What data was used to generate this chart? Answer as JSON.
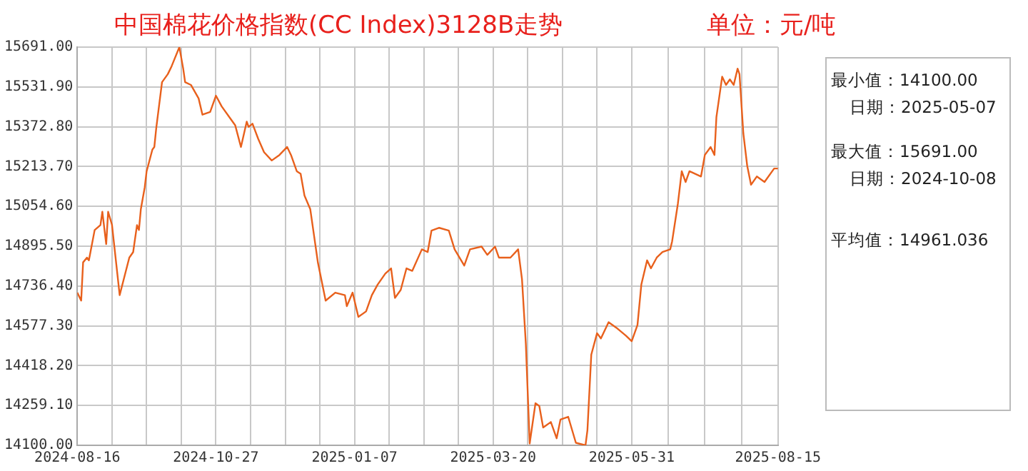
{
  "chart_data": {
    "type": "line",
    "title": "中国棉花价格指数(CC Index)3128B走势",
    "subtitle": "单位：元/吨",
    "annotations": [
      "最小值：14100.00",
      "日期：2025-05-07",
      "最大值：15691.00",
      "日期：2024-10-08",
      "平均值：14961.036"
    ],
    "x": [
      "2024-08-16",
      "2024-08-18",
      "2024-08-19",
      "2024-08-21",
      "2024-08-22",
      "2024-08-25",
      "2024-08-28",
      "2024-08-29",
      "2024-08-31",
      "2024-09-01",
      "2024-09-03",
      "2024-09-07",
      "2024-09-12",
      "2024-09-14",
      "2024-09-16",
      "2024-09-17",
      "2024-09-18",
      "2024-09-20",
      "2024-09-21",
      "2024-09-24",
      "2024-09-25",
      "2024-09-26",
      "2024-09-29",
      "2024-10-02",
      "2024-10-04",
      "2024-10-08",
      "2024-10-10",
      "2024-10-11",
      "2024-10-14",
      "2024-10-18",
      "2024-10-20",
      "2024-10-24",
      "2024-10-27",
      "2024-10-30",
      "2024-11-04",
      "2024-11-06",
      "2024-11-09",
      "2024-11-12",
      "2024-11-13",
      "2024-11-15",
      "2024-11-18",
      "2024-11-21",
      "2024-11-25",
      "2024-11-29",
      "2024-12-03",
      "2024-12-05",
      "2024-12-08",
      "2024-12-10",
      "2024-12-12",
      "2024-12-15",
      "2024-12-19",
      "2024-12-23",
      "2024-12-28",
      "2025-01-02",
      "2025-01-03",
      "2025-01-06",
      "2025-01-09",
      "2025-01-13",
      "2025-01-16",
      "2025-01-19",
      "2025-01-23",
      "2025-01-26",
      "2025-01-28",
      "2025-01-31",
      "2025-02-03",
      "2025-02-06",
      "2025-02-11",
      "2025-02-14",
      "2025-02-16",
      "2025-02-20",
      "2025-02-25",
      "2025-02-28",
      "2025-03-05",
      "2025-03-08",
      "2025-03-14",
      "2025-03-17",
      "2025-03-21",
      "2025-03-23",
      "2025-03-29",
      "2025-04-02",
      "2025-04-04",
      "2025-04-06",
      "2025-04-08",
      "2025-04-11",
      "2025-04-13",
      "2025-04-15",
      "2025-04-19",
      "2025-04-22",
      "2025-04-24",
      "2025-04-28",
      "2025-05-02",
      "2025-05-07",
      "2025-05-08",
      "2025-05-10",
      "2025-05-13",
      "2025-05-15",
      "2025-05-19",
      "2025-05-23",
      "2025-05-28",
      "2025-05-31",
      "2025-06-03",
      "2025-06-05",
      "2025-06-08",
      "2025-06-10",
      "2025-06-13",
      "2025-06-16",
      "2025-06-20",
      "2025-06-21",
      "2025-06-24",
      "2025-06-26",
      "2025-06-28",
      "2025-06-30",
      "2025-07-06",
      "2025-07-08",
      "2025-07-11",
      "2025-07-13",
      "2025-07-14",
      "2025-07-17",
      "2025-07-19",
      "2025-07-21",
      "2025-07-23",
      "2025-07-25",
      "2025-07-26",
      "2025-07-28",
      "2025-07-30",
      "2025-08-01",
      "2025-08-04",
      "2025-08-08",
      "2025-08-13",
      "2025-08-15"
    ],
    "series": [
      {
        "color": "#e8601c",
        "values": [
          14710,
          14678,
          14831,
          14850,
          14839,
          14960,
          14980,
          15033,
          14904,
          15033,
          14981,
          14700,
          14850,
          14872,
          14980,
          14960,
          15044,
          15130,
          15195,
          15282,
          15292,
          15368,
          15551,
          15583,
          15615,
          15691,
          15605,
          15551,
          15540,
          15486,
          15421,
          15432,
          15497,
          15454,
          15400,
          15379,
          15292,
          15393,
          15372,
          15385,
          15324,
          15271,
          15238,
          15260,
          15292,
          15260,
          15195,
          15185,
          15098,
          15044,
          14829,
          14678,
          14710,
          14700,
          14656,
          14710,
          14613,
          14635,
          14700,
          14742,
          14786,
          14807,
          14689,
          14721,
          14807,
          14797,
          14883,
          14872,
          14958,
          14969,
          14958,
          14883,
          14818,
          14883,
          14894,
          14861,
          14894,
          14850,
          14850,
          14883,
          14764,
          14506,
          14107,
          14268,
          14257,
          14171,
          14193,
          14128,
          14203,
          14214,
          14110,
          14100,
          14160,
          14462,
          14548,
          14527,
          14592,
          14570,
          14538,
          14516,
          14581,
          14742,
          14839,
          14807,
          14850,
          14872,
          14883,
          14915,
          15066,
          15195,
          15152,
          15195,
          15174,
          15260,
          15292,
          15260,
          15411,
          15573,
          15540,
          15562,
          15540,
          15605,
          15583,
          15346,
          15217,
          15141,
          15174,
          15152,
          15206,
          15206
        ]
      }
    ],
    "xlim": [
      "2024-08-16",
      "2025-08-15"
    ],
    "xticks": [
      "2024-08-16",
      {
        "value": "2024-09-03",
        "label": null
      },
      {
        "value": "2024-09-21",
        "label": null
      },
      {
        "value": "2024-10-09",
        "label": null
      },
      "2024-10-27",
      {
        "value": "2024-11-14",
        "label": null
      },
      {
        "value": "2024-12-02",
        "label": null
      },
      {
        "value": "2024-12-20",
        "label": null
      },
      "2025-01-07",
      {
        "value": "2025-01-25",
        "label": null
      },
      {
        "value": "2025-02-12",
        "label": null
      },
      {
        "value": "2025-03-02",
        "label": null
      },
      "2025-03-20",
      {
        "value": "2025-04-07",
        "label": null
      },
      {
        "value": "2025-04-25",
        "label": null
      },
      {
        "value": "2025-05-13",
        "label": null
      },
      "2025-05-31",
      {
        "value": "2025-06-19",
        "label": null
      },
      {
        "value": "2025-07-08",
        "label": null
      },
      {
        "value": "2025-07-27",
        "label": null
      },
      "2025-08-15"
    ],
    "ylim": [
      14100,
      15691
    ],
    "yticks": [
      {
        "value": 14100,
        "label": "14100.00"
      },
      {
        "value": 14259.1,
        "label": "14259.10"
      },
      {
        "value": 14418.2,
        "label": "14418.20"
      },
      {
        "value": 14577.3,
        "label": "14577.30"
      },
      {
        "value": 14736.4,
        "label": "14736.40"
      },
      {
        "value": 14895.5,
        "label": "14895.50"
      },
      {
        "value": 15054.6,
        "label": "15054.60"
      },
      {
        "value": 15213.7,
        "label": "15213.70"
      },
      {
        "value": 15372.8,
        "label": "15372.80"
      },
      {
        "value": 15531.9,
        "label": "15531.90"
      },
      {
        "value": 15691,
        "label": "15691.00"
      }
    ],
    "grid": true,
    "legend": false,
    "marker": "none",
    "line_style": "solid"
  }
}
